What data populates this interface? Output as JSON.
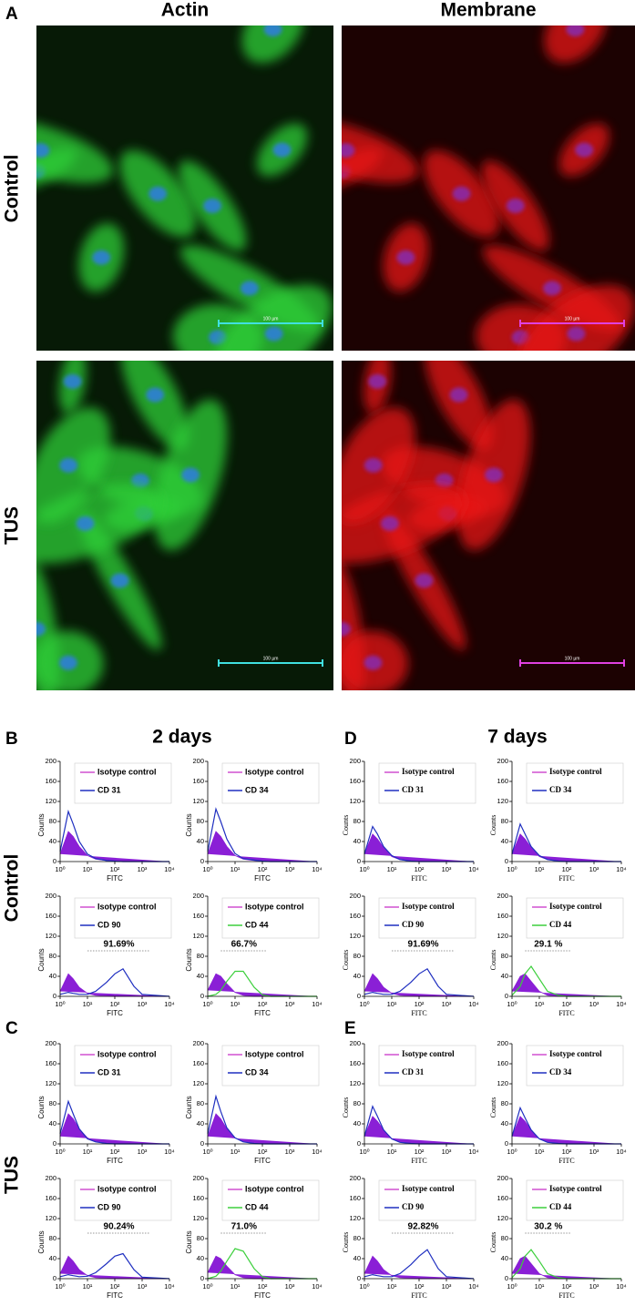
{
  "figure": {
    "panel_labels": [
      "A",
      "B",
      "C",
      "D",
      "E"
    ],
    "columns": [
      "Actin",
      "Membrane"
    ],
    "rows": [
      "Control",
      "TUS"
    ],
    "scale_bar": "100 µm",
    "time_labels": [
      "2 days",
      "7 days"
    ],
    "hist_axes": {
      "ylabel": "Counts",
      "xlabel": "FITC",
      "log_x": true,
      "ylim": [
        0,
        200
      ],
      "yticks": [
        0,
        40,
        80,
        120,
        160,
        200
      ],
      "xlim": [
        1,
        10000
      ],
      "xticks": [
        {
          "value": 1,
          "label": "10⁰"
        },
        {
          "value": 10,
          "label": "10¹"
        },
        {
          "value": 100,
          "label": "10²"
        },
        {
          "value": 1000,
          "label": "10³"
        },
        {
          "value": 10000,
          "label": "10⁴"
        }
      ],
      "x": [
        1,
        2,
        3,
        5,
        10,
        20,
        50,
        100,
        200,
        500,
        1000,
        10000
      ]
    },
    "panels": [
      {
        "plots": [
          {
            "type": "histogram",
            "series": [
              {
                "name": "Isotype control",
                "color": "#8a1fd6",
                "values": [
                  15,
                  60,
                  50,
                  30,
                  12,
                  5,
                  2,
                  1,
                  0,
                  0,
                  0,
                  0
                ]
              },
              {
                "name": "CD 31",
                "color": "#1f2fc0",
                "values": [
                  20,
                  100,
                  75,
                  40,
                  15,
                  6,
                  2,
                  1,
                  0,
                  0,
                  0,
                  0
                ]
              }
            ]
          },
          {
            "type": "histogram",
            "series": [
              {
                "name": "Isotype control",
                "color": "#8a1fd6",
                "values": [
                  15,
                  60,
                  50,
                  30,
                  12,
                  5,
                  2,
                  1,
                  0,
                  0,
                  0,
                  0
                ]
              },
              {
                "name": "CD 34",
                "color": "#1f2fc0",
                "values": [
                  20,
                  105,
                  80,
                  45,
                  16,
                  6,
                  3,
                  1,
                  0,
                  0,
                  0,
                  0
                ]
              }
            ]
          },
          {
            "type": "histogram",
            "percent": "91.69%",
            "series": [
              {
                "name": "Isotype control",
                "color": "#8a1fd6",
                "values": [
                  10,
                  45,
                  35,
                  18,
                  6,
                  2,
                  1,
                  0,
                  0,
                  0,
                  0,
                  0
                ]
              },
              {
                "name": "CD 90",
                "color": "#1f2fc0",
                "values": [
                  4,
                  8,
                  6,
                  4,
                  4,
                  10,
                  28,
                  45,
                  55,
                  20,
                  4,
                  0
                ]
              }
            ]
          },
          {
            "type": "histogram",
            "percent": "66.7%",
            "series": [
              {
                "name": "Isotype control",
                "color": "#8a1fd6",
                "values": [
                  12,
                  45,
                  40,
                  25,
                  8,
                  2,
                  0,
                  0,
                  0,
                  0,
                  0,
                  0
                ]
              },
              {
                "name": "CD 44",
                "color": "#3ccf3c",
                "values": [
                  0,
                  4,
                  12,
                  30,
                  50,
                  50,
                  18,
                  3,
                  0,
                  0,
                  0,
                  0
                ]
              }
            ]
          }
        ]
      },
      {
        "plots": [
          {
            "type": "histogram",
            "series": [
              {
                "name": "Isotype control",
                "color": "#8a1fd6",
                "values": [
                  15,
                  60,
                  50,
                  30,
                  12,
                  5,
                  2,
                  1,
                  0,
                  0,
                  0,
                  0
                ]
              },
              {
                "name": "CD 31",
                "color": "#1f2fc0",
                "values": [
                  20,
                  85,
                  60,
                  30,
                  10,
                  4,
                  1,
                  0,
                  0,
                  0,
                  0,
                  0
                ]
              }
            ]
          },
          {
            "type": "histogram",
            "series": [
              {
                "name": "Isotype control",
                "color": "#8a1fd6",
                "values": [
                  15,
                  60,
                  50,
                  30,
                  12,
                  5,
                  2,
                  1,
                  0,
                  0,
                  0,
                  0
                ]
              },
              {
                "name": "CD 34",
                "color": "#1f2fc0",
                "values": [
                  20,
                  95,
                  65,
                  32,
                  12,
                  4,
                  1,
                  0,
                  0,
                  0,
                  0,
                  0
                ]
              }
            ]
          },
          {
            "type": "histogram",
            "percent": "90.24%",
            "series": [
              {
                "name": "Isotype control",
                "color": "#8a1fd6",
                "values": [
                  10,
                  45,
                  35,
                  18,
                  6,
                  2,
                  1,
                  0,
                  0,
                  0,
                  0,
                  0
                ]
              },
              {
                "name": "CD 90",
                "color": "#1f2fc0",
                "values": [
                  4,
                  8,
                  6,
                  4,
                  5,
                  12,
                  30,
                  45,
                  50,
                  18,
                  3,
                  0
                ]
              }
            ]
          },
          {
            "type": "histogram",
            "percent": "71.0%",
            "series": [
              {
                "name": "Isotype control",
                "color": "#8a1fd6",
                "values": [
                  12,
                  45,
                  40,
                  25,
                  8,
                  2,
                  0,
                  0,
                  0,
                  0,
                  0,
                  0
                ]
              },
              {
                "name": "CD 44",
                "color": "#3ccf3c",
                "values": [
                  0,
                  5,
                  15,
                  35,
                  60,
                  55,
                  20,
                  4,
                  0,
                  0,
                  0,
                  0
                ]
              }
            ]
          }
        ]
      },
      {
        "plots": [
          {
            "type": "histogram",
            "series": [
              {
                "name": "Isotype control",
                "color": "#8a1fd6",
                "values": [
                  15,
                  55,
                  45,
                  28,
                  10,
                  4,
                  1,
                  0,
                  0,
                  0,
                  0,
                  0
                ]
              },
              {
                "name": "CD 31",
                "color": "#1f2fc0",
                "values": [
                  15,
                  70,
                  55,
                  30,
                  12,
                  4,
                  1,
                  0,
                  0,
                  0,
                  0,
                  0
                ]
              }
            ]
          },
          {
            "type": "histogram",
            "series": [
              {
                "name": "Isotype control",
                "color": "#8a1fd6",
                "values": [
                  15,
                  55,
                  45,
                  28,
                  10,
                  4,
                  1,
                  0,
                  0,
                  0,
                  0,
                  0
                ]
              },
              {
                "name": "CD 34",
                "color": "#1f2fc0",
                "values": [
                  15,
                  75,
                  55,
                  30,
                  12,
                  4,
                  1,
                  0,
                  0,
                  0,
                  0,
                  0
                ]
              }
            ]
          },
          {
            "type": "histogram",
            "percent": "91.69%",
            "series": [
              {
                "name": "Isotype control",
                "color": "#8a1fd6",
                "values": [
                  10,
                  45,
                  35,
                  18,
                  6,
                  2,
                  1,
                  0,
                  0,
                  0,
                  0,
                  0
                ]
              },
              {
                "name": "CD 90",
                "color": "#1f2fc0",
                "values": [
                  4,
                  8,
                  6,
                  4,
                  4,
                  10,
                  28,
                  45,
                  55,
                  20,
                  4,
                  0
                ]
              }
            ]
          },
          {
            "type": "histogram",
            "percent": "29.1 %",
            "series": [
              {
                "name": "Isotype control",
                "color": "#8a1fd6",
                "values": [
                  10,
                  40,
                  45,
                  30,
                  10,
                  2,
                  0,
                  0,
                  0,
                  0,
                  0,
                  0
                ]
              },
              {
                "name": "CD 44",
                "color": "#3ccf3c",
                "values": [
                  2,
                  20,
                  45,
                  60,
                  35,
                  10,
                  2,
                  0,
                  0,
                  0,
                  0,
                  0
                ]
              }
            ]
          }
        ]
      },
      {
        "plots": [
          {
            "type": "histogram",
            "series": [
              {
                "name": "Isotype control",
                "color": "#8a1fd6",
                "values": [
                  15,
                  55,
                  45,
                  28,
                  10,
                  4,
                  1,
                  0,
                  0,
                  0,
                  0,
                  0
                ]
              },
              {
                "name": "CD 31",
                "color": "#1f2fc0",
                "values": [
                  15,
                  75,
                  55,
                  28,
                  10,
                  3,
                  1,
                  0,
                  0,
                  0,
                  0,
                  0
                ]
              }
            ]
          },
          {
            "type": "histogram",
            "series": [
              {
                "name": "Isotype control",
                "color": "#8a1fd6",
                "values": [
                  15,
                  55,
                  45,
                  28,
                  10,
                  4,
                  1,
                  0,
                  0,
                  0,
                  0,
                  0
                ]
              },
              {
                "name": "CD 34",
                "color": "#1f2fc0",
                "values": [
                  15,
                  72,
                  52,
                  28,
                  10,
                  3,
                  1,
                  0,
                  0,
                  0,
                  0,
                  0
                ]
              }
            ]
          },
          {
            "type": "histogram",
            "percent": "92.82%",
            "series": [
              {
                "name": "Isotype control",
                "color": "#8a1fd6",
                "values": [
                  10,
                  45,
                  35,
                  18,
                  6,
                  2,
                  1,
                  0,
                  0,
                  0,
                  0,
                  0
                ]
              },
              {
                "name": "CD 90",
                "color": "#1f2fc0",
                "values": [
                  4,
                  8,
                  6,
                  4,
                  4,
                  10,
                  28,
                  45,
                  58,
                  20,
                  4,
                  0
                ]
              }
            ]
          },
          {
            "type": "histogram",
            "percent": "30.2 %",
            "series": [
              {
                "name": "Isotype control",
                "color": "#8a1fd6",
                "values": [
                  10,
                  40,
                  45,
                  30,
                  10,
                  2,
                  0,
                  0,
                  0,
                  0,
                  0,
                  0
                ]
              },
              {
                "name": "CD 44",
                "color": "#3ccf3c",
                "values": [
                  2,
                  20,
                  45,
                  58,
                  35,
                  10,
                  2,
                  0,
                  0,
                  0,
                  0,
                  0
                ]
              }
            ]
          }
        ]
      }
    ]
  }
}
